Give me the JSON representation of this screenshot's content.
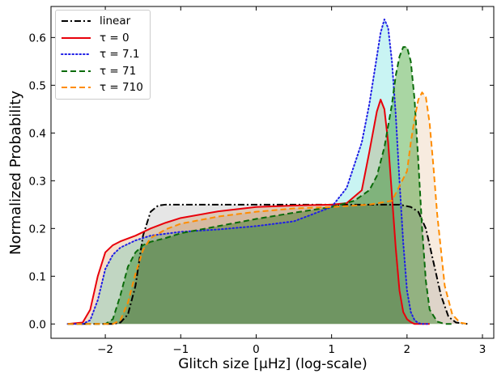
{
  "chart_data": {
    "type": "area",
    "title": "",
    "xlabel": "Glitch size [μHz]  (log-scale)",
    "ylabel": "Normalized Probability",
    "xlim": [
      -2.72,
      3.15
    ],
    "ylim": [
      -0.03,
      0.665
    ],
    "xticks": [
      "−2",
      "−1",
      "0",
      "1",
      "2",
      "3"
    ],
    "xtick_values": [
      -2,
      -1,
      0,
      1,
      2,
      3
    ],
    "yticks": [
      "0.0",
      "0.1",
      "0.2",
      "0.3",
      "0.4",
      "0.5",
      "0.6"
    ],
    "ytick_values": [
      0.0,
      0.1,
      0.2,
      0.3,
      0.4,
      0.5,
      0.6
    ],
    "legend_position": "top-left",
    "grid": false,
    "series": [
      {
        "name": "linear",
        "color": "#000000",
        "fill": "#e6e6e6",
        "style": "dashdot",
        "x": [
          -2.5,
          -1.9,
          -1.8,
          -1.7,
          -1.6,
          -1.5,
          -1.4,
          -1.3,
          -1.2,
          0.0,
          1.0,
          1.9,
          2.05,
          2.15,
          2.25,
          2.35,
          2.45,
          2.55,
          2.65,
          2.8
        ],
        "y": [
          0.0,
          0.0,
          0.003,
          0.02,
          0.08,
          0.185,
          0.235,
          0.248,
          0.25,
          0.25,
          0.25,
          0.25,
          0.245,
          0.235,
          0.2,
          0.13,
          0.06,
          0.015,
          0.003,
          0.0
        ]
      },
      {
        "name": "τ = 0",
        "color": "#e8000b",
        "fill": "#f5e0cc",
        "style": "solid",
        "x": [
          -2.5,
          -2.3,
          -2.2,
          -2.1,
          -2.0,
          -1.9,
          -1.8,
          -1.6,
          -1.4,
          -1.2,
          -1.0,
          -0.5,
          0.0,
          0.5,
          1.0,
          1.2,
          1.4,
          1.5,
          1.6,
          1.65,
          1.7,
          1.75,
          1.8,
          1.85,
          1.9,
          1.95,
          2.0,
          2.05,
          2.1,
          2.2,
          2.3
        ],
        "y": [
          0.0,
          0.003,
          0.03,
          0.1,
          0.15,
          0.165,
          0.173,
          0.185,
          0.2,
          0.212,
          0.222,
          0.236,
          0.245,
          0.248,
          0.25,
          0.253,
          0.28,
          0.36,
          0.445,
          0.47,
          0.45,
          0.38,
          0.27,
          0.16,
          0.07,
          0.025,
          0.01,
          0.004,
          0.0,
          0.0,
          0.0
        ]
      },
      {
        "name": "τ = 7.1",
        "color": "#1f1fe6",
        "fill": "#c9f4f3",
        "style": "dotted",
        "x": [
          -2.5,
          -2.3,
          -2.2,
          -2.1,
          -2.0,
          -1.9,
          -1.8,
          -1.6,
          -1.4,
          -1.0,
          -0.5,
          0.0,
          0.5,
          1.0,
          1.2,
          1.4,
          1.5,
          1.6,
          1.65,
          1.7,
          1.75,
          1.8,
          1.85,
          1.9,
          1.95,
          2.0,
          2.05,
          2.1,
          2.15,
          2.2,
          2.3
        ],
        "y": [
          0.0,
          0.0,
          0.008,
          0.05,
          0.115,
          0.145,
          0.16,
          0.175,
          0.185,
          0.193,
          0.198,
          0.205,
          0.215,
          0.245,
          0.285,
          0.38,
          0.46,
          0.56,
          0.61,
          0.638,
          0.62,
          0.55,
          0.44,
          0.3,
          0.17,
          0.07,
          0.025,
          0.008,
          0.002,
          0.0,
          0.0
        ]
      },
      {
        "name": "τ = 71",
        "color": "#0a6b0a",
        "fill": "#a9d6a3",
        "style": "dashed",
        "x": [
          -2.5,
          -2.0,
          -1.9,
          -1.8,
          -1.7,
          -1.6,
          -1.5,
          -1.4,
          -1.2,
          -1.0,
          -0.5,
          0.0,
          0.5,
          1.0,
          1.3,
          1.5,
          1.6,
          1.7,
          1.8,
          1.85,
          1.9,
          1.95,
          2.0,
          2.05,
          2.1,
          2.15,
          2.2,
          2.25,
          2.3,
          2.4,
          2.5,
          2.6
        ],
        "y": [
          0.0,
          0.0,
          0.01,
          0.06,
          0.12,
          0.15,
          0.165,
          0.172,
          0.18,
          0.19,
          0.205,
          0.22,
          0.233,
          0.245,
          0.258,
          0.28,
          0.31,
          0.37,
          0.46,
          0.52,
          0.56,
          0.58,
          0.58,
          0.55,
          0.47,
          0.34,
          0.2,
          0.09,
          0.03,
          0.005,
          0.0,
          0.0
        ]
      },
      {
        "name": "τ = 710",
        "color": "#ff8c00",
        "fill": "#f7ebdf",
        "style": "dashed",
        "x": [
          -2.5,
          -1.9,
          -1.8,
          -1.7,
          -1.6,
          -1.5,
          -1.4,
          -1.2,
          -1.0,
          -0.5,
          0.0,
          0.5,
          1.0,
          1.5,
          1.8,
          2.0,
          2.05,
          2.1,
          2.15,
          2.2,
          2.25,
          2.3,
          2.35,
          2.4,
          2.5,
          2.6,
          2.7,
          2.8
        ],
        "y": [
          0.0,
          0.0,
          0.008,
          0.045,
          0.105,
          0.155,
          0.18,
          0.198,
          0.21,
          0.225,
          0.235,
          0.242,
          0.245,
          0.25,
          0.258,
          0.32,
          0.38,
          0.43,
          0.47,
          0.485,
          0.475,
          0.42,
          0.33,
          0.23,
          0.08,
          0.02,
          0.003,
          0.0
        ]
      }
    ]
  }
}
